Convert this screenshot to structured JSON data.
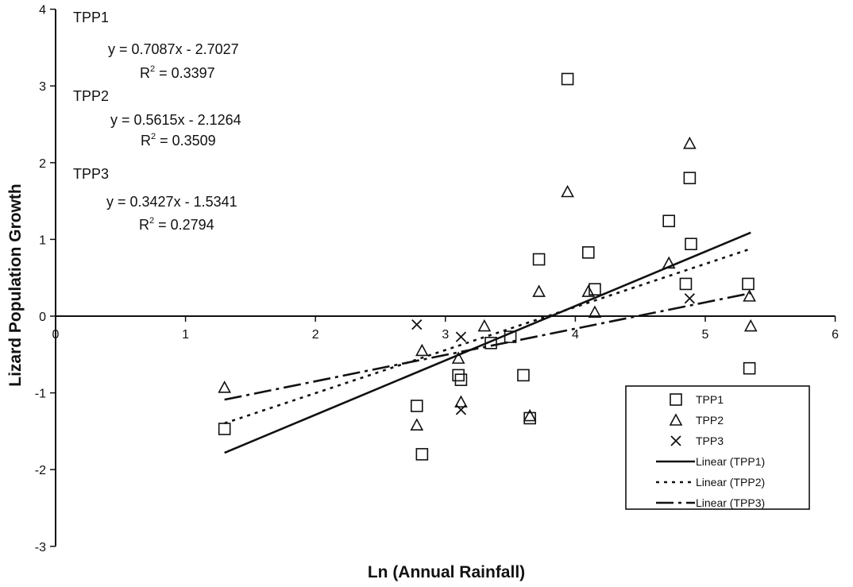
{
  "chart_data": {
    "type": "scatter",
    "xlabel": "Ln (Annual Rainfall)",
    "ylabel": "Lizard Population Growth",
    "xlim": [
      0,
      6
    ],
    "ylim": [
      -3,
      4
    ],
    "x_ticks": [
      "0",
      "1",
      "2",
      "3",
      "4",
      "5",
      "6"
    ],
    "y_ticks": [
      "-3",
      "-2",
      "-1",
      "0",
      "1",
      "2",
      "3",
      "4"
    ],
    "grid": false,
    "legend_position": "bottom-right",
    "series": [
      {
        "name": "TPP1",
        "marker": "square",
        "points": [
          [
            1.3,
            -1.47
          ],
          [
            2.78,
            -1.17
          ],
          [
            2.82,
            -1.8
          ],
          [
            3.1,
            -0.77
          ],
          [
            3.12,
            -0.83
          ],
          [
            3.35,
            -0.35
          ],
          [
            3.5,
            -0.27
          ],
          [
            3.6,
            -0.77
          ],
          [
            3.65,
            -1.33
          ],
          [
            3.72,
            0.74
          ],
          [
            3.94,
            3.09
          ],
          [
            4.1,
            0.83
          ],
          [
            4.15,
            0.35
          ],
          [
            4.72,
            1.24
          ],
          [
            4.85,
            0.42
          ],
          [
            4.88,
            1.8
          ],
          [
            4.89,
            0.94
          ],
          [
            5.33,
            0.42
          ],
          [
            5.34,
            -0.68
          ]
        ]
      },
      {
        "name": "TPP2",
        "marker": "triangle",
        "points": [
          [
            1.3,
            -0.93
          ],
          [
            2.78,
            -1.42
          ],
          [
            2.82,
            -0.45
          ],
          [
            3.1,
            -0.55
          ],
          [
            3.12,
            -1.12
          ],
          [
            3.3,
            -0.13
          ],
          [
            3.65,
            -1.3
          ],
          [
            3.72,
            0.32
          ],
          [
            3.94,
            1.62
          ],
          [
            4.1,
            0.32
          ],
          [
            4.15,
            0.05
          ],
          [
            4.72,
            0.69
          ],
          [
            4.88,
            2.25
          ],
          [
            5.34,
            0.26
          ],
          [
            5.35,
            -0.13
          ]
        ]
      },
      {
        "name": "TPP3",
        "marker": "x",
        "points": [
          [
            2.78,
            -0.11
          ],
          [
            3.12,
            -0.27
          ],
          [
            3.12,
            -1.22
          ],
          [
            4.88,
            0.23
          ]
        ]
      }
    ],
    "trendlines": [
      {
        "name": "Linear (TPP1)",
        "series": "TPP1",
        "slope": 0.7087,
        "intercept": -2.7027,
        "x_range": [
          1.3,
          5.35
        ],
        "dash": "solid"
      },
      {
        "name": "Linear (TPP2)",
        "series": "TPP2",
        "slope": 0.5615,
        "intercept": -2.1264,
        "x_range": [
          1.3,
          5.35
        ],
        "dash": "dotted"
      },
      {
        "name": "Linear (TPP3)",
        "series": "TPP3",
        "slope": 0.3427,
        "intercept": -1.5341,
        "x_range": [
          1.3,
          5.35
        ],
        "dash": "dashdot"
      }
    ],
    "annotations": [
      {
        "title": "TPP1",
        "equation": "y = 0.7087x - 2.7027",
        "r2": "0.3397"
      },
      {
        "title": "TPP2",
        "equation": "y = 0.5615x - 2.1264",
        "r2": "0.3509"
      },
      {
        "title": "TPP3",
        "equation": "y = 0.3427x - 1.5341",
        "r2": "0.2794"
      }
    ],
    "legend": [
      {
        "label": "TPP1",
        "symbol": "square"
      },
      {
        "label": "TPP2",
        "symbol": "triangle"
      },
      {
        "label": "TPP3",
        "symbol": "x"
      },
      {
        "label": "Linear (TPP1)",
        "symbol": "solid"
      },
      {
        "label": "Linear (TPP2)",
        "symbol": "dotted"
      },
      {
        "label": "Linear (TPP3)",
        "symbol": "dashdot"
      }
    ]
  }
}
